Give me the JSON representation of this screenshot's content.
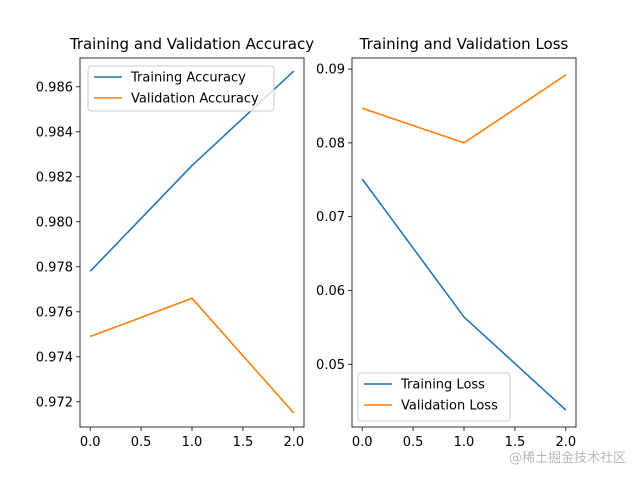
{
  "chart_data": [
    {
      "type": "line",
      "title": "Training and Validation Accuracy",
      "xlabel": "",
      "ylabel": "",
      "xlim": [
        -0.1,
        2.1
      ],
      "ylim": [
        0.97088,
        0.98728
      ],
      "xticks": [
        0.0,
        0.5,
        1.0,
        1.5,
        2.0
      ],
      "xtick_labels": [
        "0.0",
        "0.5",
        "1.0",
        "1.5",
        "2.0"
      ],
      "yticks": [
        0.972,
        0.974,
        0.976,
        0.978,
        0.98,
        0.982,
        0.984,
        0.986
      ],
      "ytick_labels": [
        "0.972",
        "0.974",
        "0.976",
        "0.978",
        "0.980",
        "0.982",
        "0.984",
        "0.986"
      ],
      "legend_position": "upper-left",
      "grid": false,
      "x": [
        0,
        1,
        2
      ],
      "series": [
        {
          "name": "Training Accuracy",
          "color": "#1f77b4",
          "values": [
            0.9778,
            0.9825,
            0.9867
          ]
        },
        {
          "name": "Validation Accuracy",
          "color": "#ff7f0e",
          "values": [
            0.9749,
            0.9766,
            0.9715
          ]
        }
      ]
    },
    {
      "type": "line",
      "title": "Training and Validation Loss",
      "xlabel": "",
      "ylabel": "",
      "xlim": [
        -0.1,
        2.1
      ],
      "ylim": [
        0.0415,
        0.0915
      ],
      "xticks": [
        0.0,
        0.5,
        1.0,
        1.5,
        2.0
      ],
      "xtick_labels": [
        "0.0",
        "0.5",
        "1.0",
        "1.5",
        "2.0"
      ],
      "yticks": [
        0.05,
        0.06,
        0.07,
        0.08,
        0.09
      ],
      "ytick_labels": [
        "0.05",
        "0.06",
        "0.07",
        "0.08",
        "0.09"
      ],
      "legend_position": "lower-left",
      "grid": false,
      "x": [
        0,
        1,
        2
      ],
      "series": [
        {
          "name": "Training Loss",
          "color": "#1f77b4",
          "values": [
            0.0751,
            0.0564,
            0.0438
          ]
        },
        {
          "name": "Validation Loss",
          "color": "#ff7f0e",
          "values": [
            0.0847,
            0.08,
            0.0892
          ]
        }
      ]
    }
  ],
  "watermark": "@稀土掘金技术社区"
}
